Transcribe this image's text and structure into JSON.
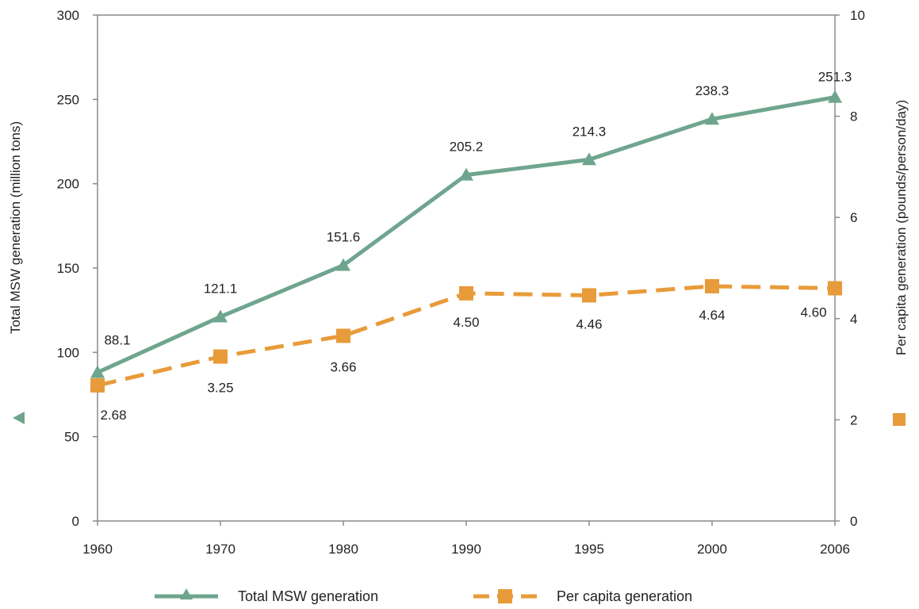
{
  "chart_data": {
    "type": "line",
    "categories": [
      "1960",
      "1970",
      "1980",
      "1990",
      "1995",
      "2000",
      "2006"
    ],
    "series": [
      {
        "name": "Total MSW generation",
        "axis": "left",
        "values": [
          88.1,
          121.1,
          151.6,
          205.2,
          214.3,
          238.3,
          251.3
        ],
        "labels": [
          "88.1",
          "121.1",
          "151.6",
          "205.2",
          "214.3",
          "238.3",
          "251.3"
        ],
        "color": "#6fa58f",
        "marker": "triangle",
        "line_style": "solid"
      },
      {
        "name": "Per capita generation",
        "axis": "right",
        "values": [
          2.68,
          3.25,
          3.66,
          4.5,
          4.46,
          4.64,
          4.6
        ],
        "labels": [
          "2.68",
          "3.25",
          "3.66",
          "4.50",
          "4.46",
          "4.64",
          "4.60"
        ],
        "color": "#e89b3a",
        "marker": "square",
        "line_style": "dashed"
      }
    ],
    "ylabel": "Total MSW generation (million tons)",
    "y2label": "Per capita generation (pounds/person/day)",
    "ylim": [
      0,
      300
    ],
    "y2lim": [
      0,
      10
    ],
    "yticks": [
      "0",
      "50",
      "100",
      "150",
      "200",
      "250",
      "300"
    ],
    "y2ticks": [
      "0",
      "2",
      "4",
      "6",
      "8",
      "10"
    ],
    "grid": false,
    "legend_position": "bottom"
  }
}
